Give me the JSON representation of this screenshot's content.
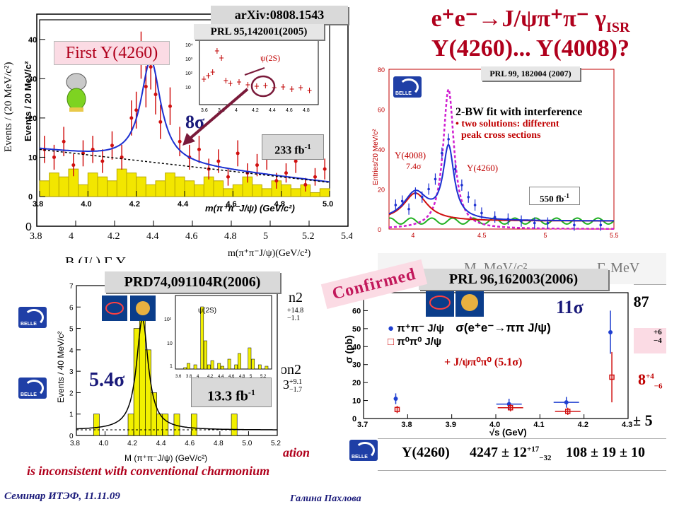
{
  "slide": {
    "title_line1": "e⁺e⁻→J/ψπ⁺π⁻ γ",
    "title_sub": "ISR",
    "title_line2": "Y(4260)... Y(4008)?",
    "footer_left": "Семинар ИТЭФ, 11.11.09",
    "footer_center": "Галина Пахлова",
    "bottom_text1": "ation",
    "bottom_text2": "is inconsistent with conventional charmonium",
    "colors": {
      "title": "#b0001c",
      "footer": "#1a1a7a",
      "bottom_text": "#b0001c",
      "confirmed": "#c2185b",
      "pink_box": "#fbdbe4"
    }
  },
  "panel_babar": {
    "ref_arxiv": "arXiv:0808.1543",
    "ref_prl": "PRL 95,142001(2005)",
    "label_first": "First Y(4260)",
    "sigma": "8σ",
    "lumi": "233 fb",
    "lumi_sup": "-1",
    "ylabel_outer": "Events / (20 MeV/c²)",
    "ylabel_inner": "Events / 20 MeV/c²",
    "xlabel_outer": "m(π⁺π⁻J/ψ)(GeV/c²)",
    "xlabel_inner": "m(π⁺π⁻J/ψ) (GeV/c²)",
    "inset_label": "ψ(2S)",
    "cutoff_text": "B  (J/    )  Γ      Y"
  },
  "panel_belle1": {
    "ref": "PRL 99, 182004 (2007)",
    "fit_title": "2-BW fit with interference",
    "fit_line1": "• two solutions: different",
    "fit_line2": "peak cross sections",
    "y4008": "Y(4008)",
    "y4008_sig": "7.4σ",
    "y4260": "Y(4260)",
    "lumi": "550 fb",
    "lumi_sup": "-1",
    "ylabel": "Entries/20 MeV/c²",
    "logo_text": "BELLE"
  },
  "panel_cleo1": {
    "ref": "PRD74,091104R(2006)",
    "sigma": "5.4σ",
    "lumi": "13.3 fb",
    "lumi_sup": "-1",
    "ylabel": "Events / 40 MeV/c²",
    "xlabel": "M (π⁺π⁻J/ψ) (GeV/c²)",
    "inset_label": "ψ(2S)",
    "frag1": "n2",
    "frag2": "on2",
    "frag3_val": "3",
    "frag3_sup": "+9.1",
    "frag3_sub": "−1.7",
    "frag4_sup": "+14.8",
    "frag4_sub": "−1.1"
  },
  "panel_cleo2": {
    "ref": "PRL 96,162003(2006)",
    "confirmed": "Confirmed",
    "sigma": "11σ",
    "legend1": "π⁺π⁻ J/ψ",
    "legend2": "π⁰π⁰ J/ψ",
    "legend_title": "σ(e⁺e⁻→ππ J/ψ)",
    "extra": "+ J/ψπ⁰π⁰ (5.1σ)",
    "ylabel": "σ (pb)",
    "xlabel": "√s (GeV)"
  },
  "table_fragment": {
    "h1": "Si",
    "h2": "M, MeV/c²",
    "h3": "Γ, MeV",
    "r1": "± 87",
    "r2_sup": "+6",
    "r2_sub": "−4",
    "r3": "8",
    "r3_sup": "+4",
    "r3_sub": "−6",
    "r4": "± 5",
    "row_label": "Y(4260)",
    "row_mass": "4247 ± 12",
    "row_mass_sup": "+17",
    "row_mass_sub": "−32",
    "row_width": "108 ± 19 ± 10"
  },
  "chart_data": [
    {
      "type": "bar",
      "name_ref": "PRL 95,142001(2005)",
      "xlabel": "m(π⁺π⁻J/ψ) (GeV/c²)",
      "ylabel": "Events / 20 MeV/c²",
      "xlim": [
        3.8,
        5.0
      ],
      "ylim": [
        0,
        45
      ],
      "x_ticks": [
        3.8,
        4.0,
        4.2,
        4.4,
        4.6,
        4.8,
        5.0
      ],
      "y_ticks": [
        0,
        10,
        20,
        30,
        40
      ],
      "series": [
        {
          "name": "data",
          "type": "scatter",
          "x": [
            3.82,
            3.86,
            3.9,
            3.94,
            3.98,
            4.02,
            4.06,
            4.1,
            4.14,
            4.18,
            4.2,
            4.22,
            4.24,
            4.26,
            4.28,
            4.3,
            4.34,
            4.38,
            4.42,
            4.46,
            4.5,
            4.54,
            4.58,
            4.62,
            4.66,
            4.7,
            4.74,
            4.78,
            4.82,
            4.86,
            4.9,
            4.94,
            4.98
          ],
          "y": [
            12,
            10,
            14,
            8,
            11,
            12,
            9,
            13,
            10,
            20,
            22,
            36,
            28,
            33,
            26,
            19,
            23,
            14,
            10,
            12,
            7,
            9,
            5,
            11,
            6,
            8,
            10,
            4,
            6,
            9,
            3,
            5,
            7
          ]
        },
        {
          "name": "sideband",
          "type": "bar",
          "x": [
            3.82,
            3.86,
            3.9,
            3.94,
            3.98,
            4.02,
            4.06,
            4.1,
            4.14,
            4.18,
            4.22,
            4.26,
            4.3,
            4.34,
            4.38,
            4.42,
            4.46,
            4.5,
            4.54,
            4.58,
            4.62,
            4.66,
            4.7,
            4.74,
            4.78,
            4.82,
            4.86,
            4.9,
            4.94,
            4.98
          ],
          "y": [
            4,
            6,
            5,
            7,
            3,
            6,
            5,
            4,
            7,
            6,
            5,
            3,
            4,
            6,
            5,
            4,
            3,
            5,
            4,
            2,
            3,
            5,
            3,
            2,
            4,
            3,
            2,
            3,
            1,
            2
          ]
        }
      ]
    },
    {
      "type": "line",
      "name_ref": "PRL 99, 182004 (2007)",
      "ylabel": "Entries/20 MeV/c²",
      "xlim": [
        3.8,
        5.5
      ],
      "ylim": [
        0,
        80
      ],
      "y_ticks": [
        0,
        20,
        40,
        60,
        80
      ],
      "x_ticks": [
        4,
        4.5,
        5,
        5.5
      ],
      "series": [
        {
          "name": "data",
          "x": [
            3.85,
            3.9,
            3.95,
            4.0,
            4.05,
            4.1,
            4.15,
            4.2,
            4.25,
            4.3,
            4.35,
            4.4,
            4.45,
            4.5,
            4.6,
            4.7,
            4.8,
            4.9,
            5.0,
            5.2,
            5.4
          ],
          "y": [
            12,
            14,
            10,
            18,
            16,
            20,
            25,
            38,
            45,
            30,
            22,
            16,
            12,
            8,
            6,
            5,
            4,
            3,
            3,
            2,
            2
          ]
        }
      ]
    },
    {
      "type": "bar",
      "name_ref": "PRD74,091104R(2006)",
      "xlabel": "M (π⁺π⁻J/ψ) (GeV/c²)",
      "ylabel": "Events / 40 MeV/c²",
      "xlim": [
        3.8,
        5.2
      ],
      "ylim": [
        0,
        7
      ],
      "x_ticks": [
        3.8,
        4.0,
        4.2,
        4.4,
        4.6,
        4.8,
        5.0,
        5.2
      ],
      "y_ticks": [
        0,
        1,
        2,
        3,
        4,
        5,
        6,
        7
      ],
      "categories": [
        3.82,
        3.86,
        3.9,
        3.94,
        3.98,
        4.02,
        4.06,
        4.1,
        4.14,
        4.18,
        4.22,
        4.26,
        4.3,
        4.34,
        4.38,
        4.42,
        4.46,
        4.5,
        4.54,
        4.58,
        4.62,
        4.66,
        4.7,
        4.74,
        4.78,
        4.82,
        4.86,
        4.9,
        4.94,
        4.98,
        5.02,
        5.06,
        5.1,
        5.14,
        5.18
      ],
      "values": [
        0,
        0,
        0,
        1,
        0,
        0,
        0,
        0,
        0,
        1,
        5,
        6,
        4,
        2,
        1,
        1,
        0,
        1,
        0,
        0,
        1,
        0,
        0,
        0,
        0,
        0,
        0,
        1,
        0,
        0,
        0,
        0,
        0,
        0,
        0
      ]
    },
    {
      "type": "scatter",
      "name_ref": "PRL 96,162003(2006)",
      "xlabel": "√s (GeV)",
      "ylabel": "σ (pb)",
      "xlim": [
        3.7,
        4.3
      ],
      "ylim": [
        0,
        70
      ],
      "x_ticks": [
        3.7,
        3.8,
        3.9,
        4.0,
        4.1,
        4.2,
        4.3
      ],
      "y_ticks": [
        0,
        10,
        20,
        30,
        40,
        50,
        60
      ],
      "series": [
        {
          "name": "π⁺π⁻ J/ψ",
          "color": "#1f3fd0",
          "x": [
            3.773,
            4.03,
            4.16,
            4.26
          ],
          "y": [
            11,
            8,
            9,
            48
          ]
        },
        {
          "name": "π⁰π⁰ J/ψ",
          "color": "#d01010",
          "x": [
            3.773,
            4.03,
            4.16,
            4.26
          ],
          "y": [
            5,
            6,
            4,
            23
          ]
        }
      ]
    }
  ]
}
